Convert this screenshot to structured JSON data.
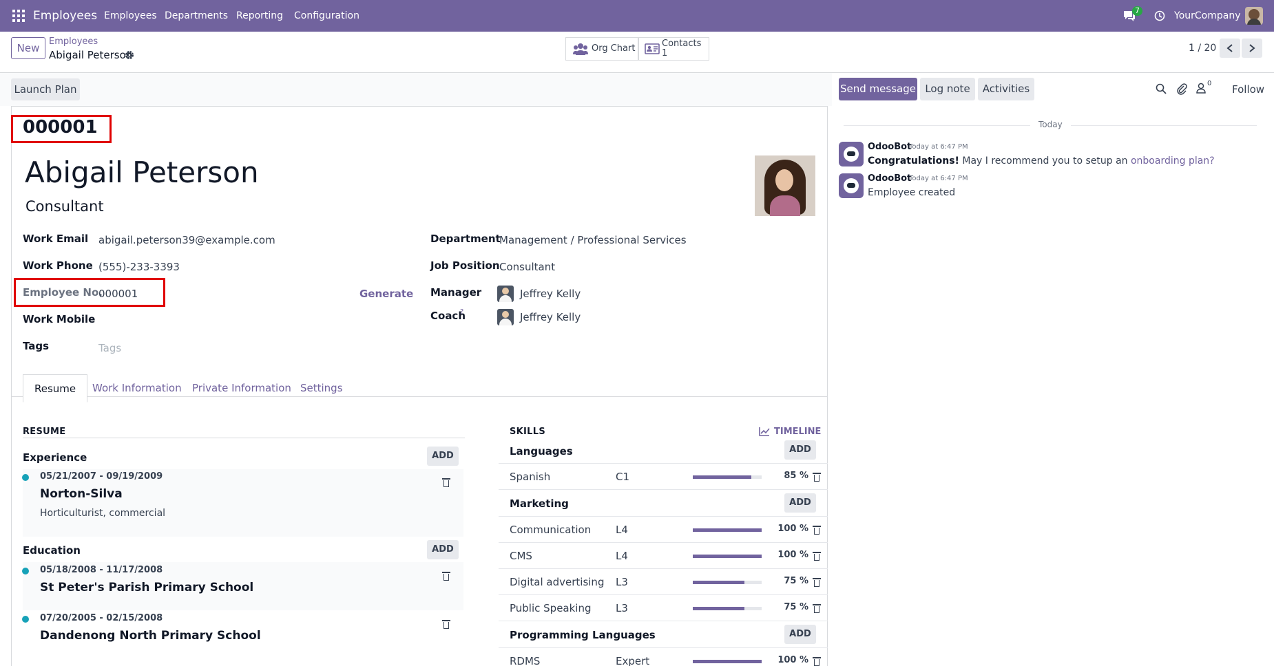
{
  "topnav": {
    "app_title": "Employees",
    "menu": [
      "Employees",
      "Departments",
      "Reporting",
      "Configuration"
    ],
    "message_count": "7",
    "company": "YourCompany"
  },
  "control_panel": {
    "new_label": "New",
    "breadcrumb_parent": "Employees",
    "breadcrumb_current": "Abigail Peterson",
    "org_chart_label": "Org Chart",
    "contacts_label": "Contacts",
    "contacts_count": "1",
    "pager": "1 / 20"
  },
  "actions": {
    "launch_plan": "Launch Plan"
  },
  "employee": {
    "badge_number": "000001",
    "name": "Abigail Peterson",
    "job_title": "Consultant",
    "fields_left": [
      {
        "label": "Work Email",
        "value": "abigail.peterson39@example.com"
      },
      {
        "label": "Work Phone",
        "value": "(555)-233-3393"
      },
      {
        "label": "Employee No.",
        "value": "000001"
      },
      {
        "label": "Work Mobile",
        "value": ""
      },
      {
        "label": "Tags",
        "value": "",
        "placeholder": "Tags"
      }
    ],
    "generate_label": "Generate",
    "fields_right": [
      {
        "label": "Department",
        "value": "Management / Professional Services"
      },
      {
        "label": "Job Position",
        "value": "Consultant"
      },
      {
        "label": "Manager",
        "value": "Jeffrey Kelly"
      },
      {
        "label": "Coach",
        "value": "Jeffrey Kelly",
        "help": "?"
      }
    ]
  },
  "tabs": [
    "Resume",
    "Work Information",
    "Private Information",
    "Settings"
  ],
  "resume": {
    "title": "RESUME",
    "add_label": "ADD",
    "experience_title": "Experience",
    "experience": [
      {
        "dates": "05/21/2007 - 09/19/2009",
        "org": "Norton-Silva",
        "desc": "Horticulturist, commercial"
      }
    ],
    "education_title": "Education",
    "education": [
      {
        "dates": "05/18/2008 - 11/17/2008",
        "org": "St Peter's Parish Primary School"
      },
      {
        "dates": "07/20/2005 - 02/15/2008",
        "org": "Dandenong North Primary School"
      }
    ]
  },
  "skills": {
    "title": "SKILLS",
    "timeline_label": "TIMELINE",
    "add_label": "ADD",
    "groups": [
      {
        "name": "Languages",
        "items": [
          {
            "name": "Spanish",
            "level": "C1",
            "progress": 85,
            "pct": "85 %"
          }
        ]
      },
      {
        "name": "Marketing",
        "items": [
          {
            "name": "Communication",
            "level": "L4",
            "progress": 100,
            "pct": "100 %"
          },
          {
            "name": "CMS",
            "level": "L4",
            "progress": 100,
            "pct": "100 %"
          },
          {
            "name": "Digital advertising",
            "level": "L3",
            "progress": 75,
            "pct": "75 %"
          },
          {
            "name": "Public Speaking",
            "level": "L3",
            "progress": 75,
            "pct": "75 %"
          }
        ]
      },
      {
        "name": "Programming Languages",
        "items": [
          {
            "name": "RDMS",
            "level": "Expert",
            "progress": 100,
            "pct": "100 %"
          }
        ]
      }
    ]
  },
  "chatter": {
    "send_message": "Send message",
    "log_note": "Log note",
    "activities": "Activities",
    "follower_count": "0",
    "follow": "Follow",
    "date_separator": "Today",
    "messages": [
      {
        "author": "OdooBot",
        "time": "Today at 6:47 PM",
        "bold": "Congratulations!",
        "text": " May I recommend you to setup an ",
        "link": "onboarding plan?"
      },
      {
        "author": "OdooBot",
        "time": "Today at 6:47 PM",
        "text": "Employee created"
      }
    ]
  },
  "colors": {
    "brand": "#71639e",
    "highlight": "#e00000",
    "progress": "#71639e"
  }
}
